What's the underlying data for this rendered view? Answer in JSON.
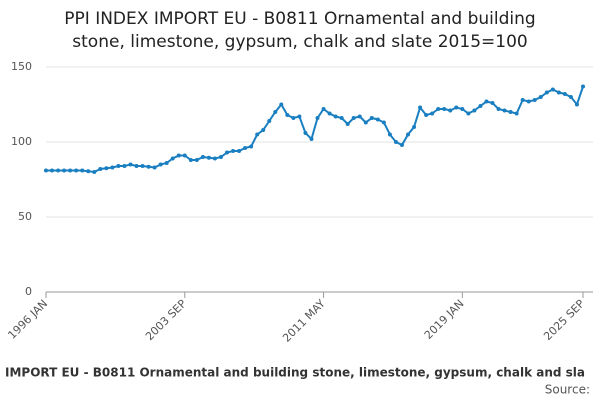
{
  "chart_data": {
    "type": "line",
    "title": [
      "PPI INDEX IMPORT EU - B0811 Ornamental and building",
      "stone, limestone, gypsum, chalk and slate 2015=100"
    ],
    "categories": [
      "1996 JAN",
      null,
      null,
      null,
      null,
      null,
      null,
      null,
      null,
      null,
      null,
      null,
      null,
      null,
      null,
      null,
      null,
      null,
      null,
      null,
      null,
      null,
      null,
      "2003 SEP",
      null,
      null,
      null,
      null,
      null,
      null,
      null,
      null,
      null,
      null,
      null,
      null,
      null,
      null,
      null,
      null,
      null,
      null,
      null,
      null,
      null,
      null,
      "2011 MAY",
      null,
      null,
      null,
      null,
      null,
      null,
      null,
      null,
      null,
      null,
      null,
      null,
      null,
      null,
      null,
      null,
      null,
      null,
      null,
      null,
      null,
      null,
      "2019 JAN",
      null,
      null,
      null,
      null,
      null,
      null,
      null,
      null,
      null,
      null,
      null,
      null,
      null,
      null,
      null,
      null,
      null,
      null,
      null,
      "2025 SEP"
    ],
    "series": [
      {
        "name": "IMPORT EU - B0811 Ornamental and building stone, limestone, gypsum, chalk and sla",
        "color": "#1a7fc1",
        "values": [
          81,
          81,
          81,
          81,
          81,
          81,
          81,
          80.5,
          80,
          82,
          82.5,
          83,
          84,
          84,
          85,
          84,
          84,
          83.5,
          83,
          85,
          86,
          89,
          91,
          91,
          88,
          88,
          90,
          89.5,
          89,
          90,
          93,
          94,
          94,
          96,
          97,
          105,
          108,
          114,
          120,
          125,
          118,
          116,
          117,
          106,
          102,
          116,
          122,
          119,
          117,
          116,
          112,
          116,
          117,
          113,
          116,
          115,
          113,
          105,
          100,
          98,
          105,
          110,
          123,
          118,
          119,
          122,
          122,
          121,
          123,
          122,
          119,
          121,
          124,
          127,
          126,
          122,
          121,
          120,
          119,
          128,
          127,
          128,
          130,
          133,
          135,
          133,
          132,
          130,
          125,
          137
        ]
      }
    ],
    "source": "Source:",
    "ylim": [
      0,
      150
    ],
    "yticks": [
      0,
      50,
      100,
      150
    ],
    "grid": true
  }
}
